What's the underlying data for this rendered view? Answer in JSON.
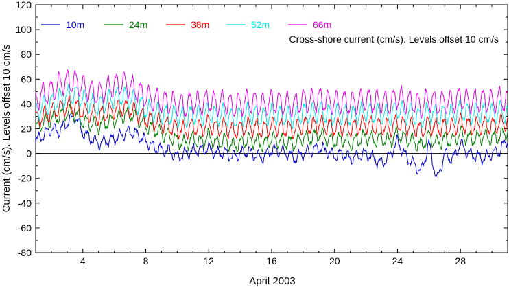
{
  "chart_data": {
    "type": "line",
    "title": "",
    "annotation": "Cross-shore current (cm/s). Levels offset 10 cm/s",
    "xlabel": "April 2003",
    "ylabel": "Current (cm/s). Levels offset 10 cm/s",
    "xlim": [
      1,
      31
    ],
    "ylim": [
      -80,
      120
    ],
    "xticks": [
      4,
      8,
      12,
      16,
      20,
      24,
      28
    ],
    "yticks": [
      -80,
      -60,
      -40,
      -20,
      0,
      20,
      40,
      60,
      80,
      100,
      120
    ],
    "zero_line": 0,
    "grid": false,
    "legend_position": "top-left",
    "series": [
      {
        "name": "10m",
        "color": "#0000cc",
        "offset": 0,
        "x": [
          1,
          1.5,
          2,
          2.5,
          3,
          3.5,
          4,
          4.5,
          5,
          5.5,
          6,
          6.5,
          7,
          7.5,
          8,
          8.5,
          9,
          9.5,
          10,
          10.5,
          11,
          11.5,
          12,
          12.5,
          13,
          13.5,
          14,
          14.5,
          15,
          15.5,
          16,
          16.5,
          17,
          17.5,
          18,
          18.5,
          19,
          19.5,
          20,
          20.5,
          21,
          21.5,
          22,
          22.5,
          23,
          23.5,
          24,
          24.5,
          25,
          25.5,
          26,
          26.5,
          27,
          27.5,
          28,
          28.5,
          29,
          29.5,
          30,
          30.5,
          31
        ],
        "y": [
          10,
          15,
          20,
          18,
          25,
          30,
          17,
          12,
          8,
          10,
          12,
          15,
          18,
          15,
          10,
          5,
          3,
          2,
          -3,
          0,
          2,
          3,
          4,
          0,
          1,
          -3,
          0,
          2,
          -2,
          -3,
          3,
          2,
          0,
          -4,
          0,
          2,
          5,
          2,
          -2,
          0,
          -4,
          -2,
          0,
          -4,
          -8,
          -2,
          10,
          -2,
          -8,
          -15,
          8,
          -22,
          0,
          -5,
          8,
          0,
          -2,
          -4,
          0,
          2,
          12
        ]
      },
      {
        "name": "24m",
        "color": "#008000",
        "offset": 10,
        "x": [
          1,
          1.5,
          2,
          2.5,
          3,
          3.5,
          4,
          4.5,
          5,
          5.5,
          6,
          6.5,
          7,
          7.5,
          8,
          8.5,
          9,
          9.5,
          10,
          10.5,
          11,
          11.5,
          12,
          12.5,
          13,
          13.5,
          14,
          14.5,
          15,
          15.5,
          16,
          16.5,
          17,
          17.5,
          18,
          18.5,
          19,
          19.5,
          20,
          20.5,
          21,
          21.5,
          22,
          22.5,
          23,
          23.5,
          24,
          24.5,
          25,
          25.5,
          26,
          26.5,
          27,
          27.5,
          28,
          28.5,
          29,
          29.5,
          30,
          30.5,
          31
        ],
        "y": [
          20,
          25,
          28,
          30,
          33,
          32,
          26,
          24,
          22,
          25,
          27,
          30,
          32,
          28,
          22,
          20,
          16,
          14,
          10,
          8,
          12,
          9,
          14,
          8,
          11,
          6,
          8,
          11,
          10,
          7,
          12,
          10,
          9,
          8,
          13,
          12,
          16,
          12,
          10,
          12,
          8,
          11,
          14,
          11,
          12,
          10,
          16,
          12,
          10,
          6,
          14,
          8,
          12,
          10,
          16,
          12,
          12,
          14,
          12,
          14,
          18
        ]
      },
      {
        "name": "38m",
        "color": "#ff0000",
        "offset": 20,
        "x": [
          1,
          1.5,
          2,
          2.5,
          3,
          3.5,
          4,
          4.5,
          5,
          5.5,
          6,
          6.5,
          7,
          7.5,
          8,
          8.5,
          9,
          9.5,
          10,
          10.5,
          11,
          11.5,
          12,
          12.5,
          13,
          13.5,
          14,
          14.5,
          15,
          15.5,
          16,
          16.5,
          17,
          17.5,
          18,
          18.5,
          19,
          19.5,
          20,
          20.5,
          21,
          21.5,
          22,
          22.5,
          23,
          23.5,
          24,
          24.5,
          25,
          25.5,
          26,
          26.5,
          27,
          27.5,
          28,
          28.5,
          29,
          29.5,
          30,
          30.5,
          31
        ],
        "y": [
          28,
          30,
          34,
          36,
          38,
          38,
          34,
          32,
          30,
          33,
          35,
          37,
          36,
          32,
          28,
          26,
          24,
          22,
          20,
          18,
          22,
          20,
          24,
          20,
          22,
          18,
          20,
          22,
          21,
          19,
          22,
          21,
          20,
          19,
          23,
          22,
          24,
          22,
          21,
          22,
          20,
          22,
          24,
          22,
          22,
          20,
          25,
          22,
          22,
          18,
          24,
          20,
          22,
          21,
          25,
          22,
          22,
          23,
          22,
          24,
          26
        ]
      },
      {
        "name": "52m",
        "color": "#00e5e5",
        "offset": 30,
        "x": [
          1,
          1.5,
          2,
          2.5,
          3,
          3.5,
          4,
          4.5,
          5,
          5.5,
          6,
          6.5,
          7,
          7.5,
          8,
          8.5,
          9,
          9.5,
          10,
          10.5,
          11,
          11.5,
          12,
          12.5,
          13,
          13.5,
          14,
          14.5,
          15,
          15.5,
          16,
          16.5,
          17,
          17.5,
          18,
          18.5,
          19,
          19.5,
          20,
          20.5,
          21,
          21.5,
          22,
          22.5,
          23,
          23.5,
          24,
          24.5,
          25,
          25.5,
          26,
          26.5,
          27,
          27.5,
          28,
          28.5,
          29,
          29.5,
          30,
          30.5,
          31
        ],
        "y": [
          34,
          38,
          40,
          44,
          46,
          48,
          44,
          40,
          38,
          42,
          45,
          47,
          44,
          40,
          36,
          34,
          32,
          31,
          30,
          28,
          32,
          30,
          33,
          30,
          32,
          28,
          30,
          32,
          31,
          29,
          32,
          31,
          30,
          29,
          33,
          32,
          34,
          32,
          31,
          32,
          30,
          32,
          34,
          32,
          32,
          30,
          36,
          32,
          32,
          28,
          34,
          30,
          32,
          31,
          35,
          32,
          32,
          33,
          32,
          34,
          32
        ]
      },
      {
        "name": "66m",
        "color": "#e600e6",
        "offset": 40,
        "x": [
          1,
          1.5,
          2,
          2.5,
          3,
          3.5,
          4,
          4.5,
          5,
          5.5,
          6,
          6.5,
          7,
          7.5,
          8,
          8.5,
          9,
          9.5,
          10,
          10.5,
          11,
          11.5,
          12,
          12.5,
          13,
          13.5,
          14,
          14.5,
          15,
          15.5,
          16,
          16.5,
          17,
          17.5,
          18,
          18.5,
          19,
          19.5,
          20,
          20.5,
          21,
          21.5,
          22,
          22.5,
          23,
          23.5,
          24,
          24.5,
          25,
          25.5,
          26,
          26.5,
          27,
          27.5,
          28,
          28.5,
          29,
          29.5,
          30,
          30.5,
          31
        ],
        "y": [
          44,
          48,
          50,
          56,
          58,
          58,
          54,
          50,
          48,
          52,
          55,
          57,
          54,
          50,
          46,
          44,
          42,
          41,
          40,
          38,
          42,
          40,
          43,
          40,
          42,
          38,
          40,
          42,
          41,
          39,
          42,
          41,
          40,
          39,
          43,
          42,
          44,
          42,
          41,
          42,
          40,
          42,
          44,
          42,
          42,
          40,
          46,
          42,
          42,
          38,
          44,
          40,
          42,
          41,
          45,
          42,
          42,
          43,
          42,
          44,
          42
        ]
      }
    ]
  }
}
